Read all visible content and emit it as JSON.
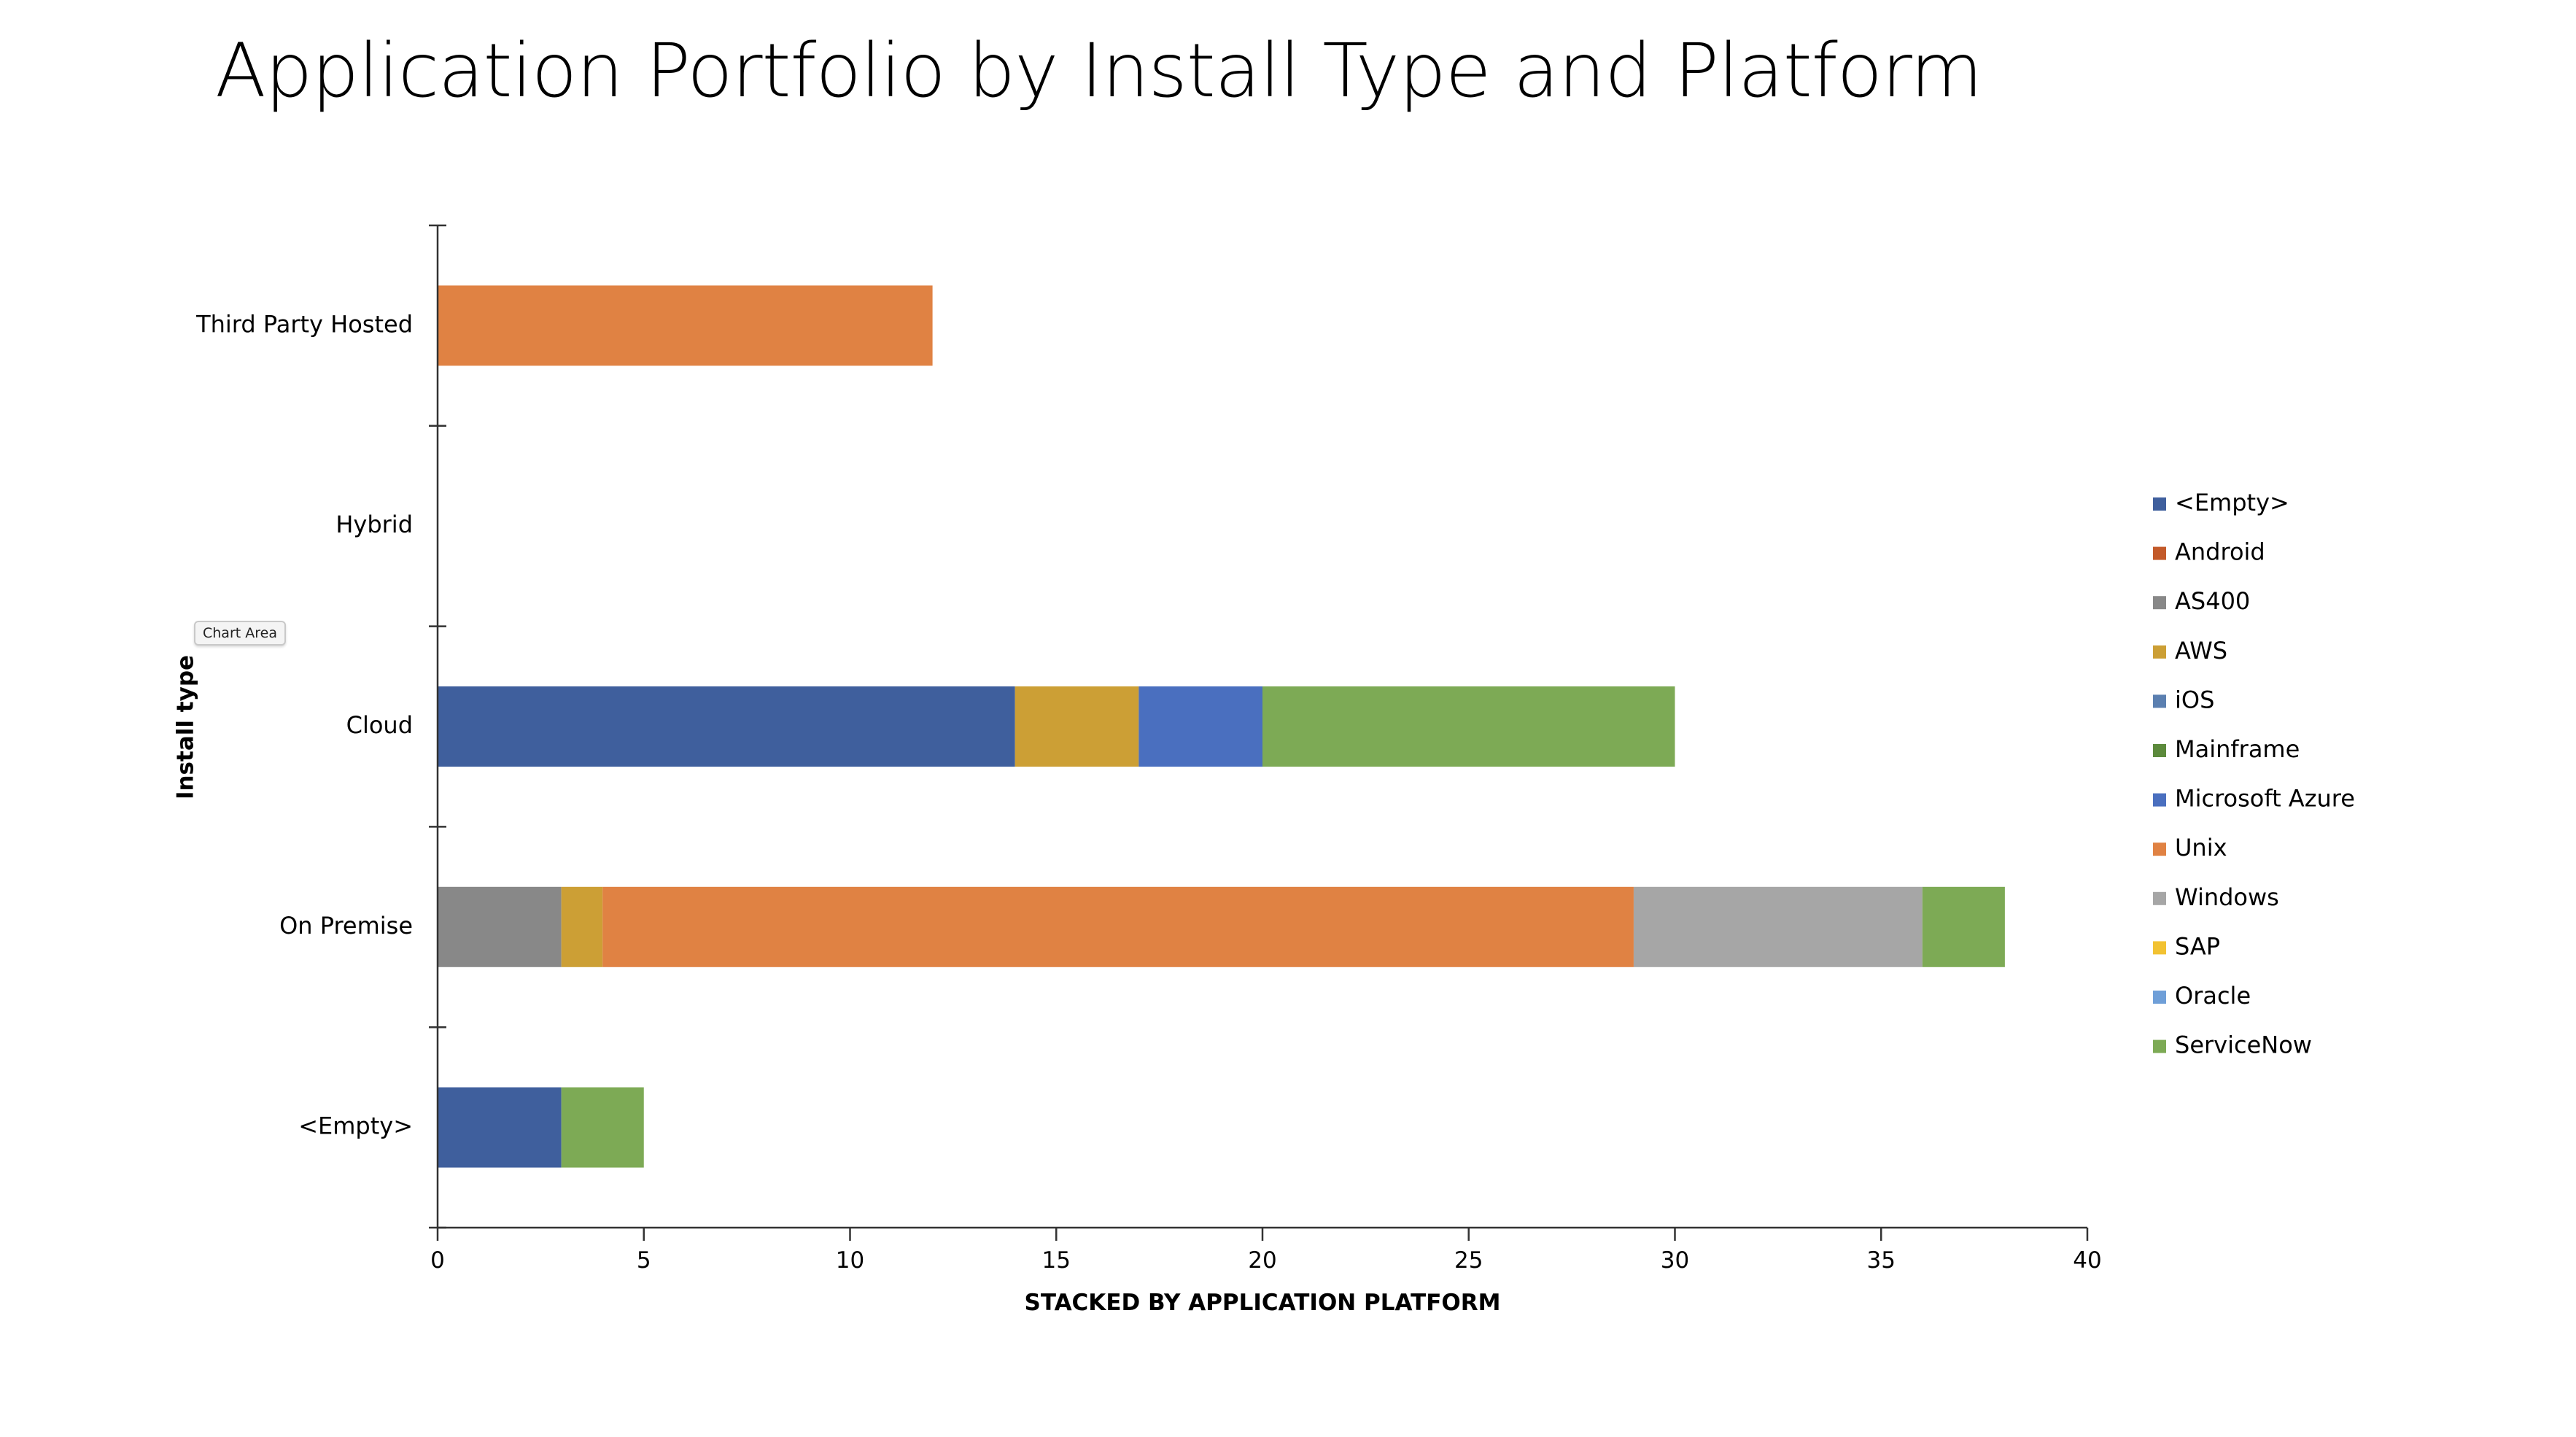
{
  "title": "Application Portfolio by Install Type and Platform",
  "tooltip": "Chart Area",
  "chart_data": {
    "type": "bar",
    "orientation": "horizontal",
    "stacked": true,
    "categories": [
      "Third Party Hosted",
      "Hybrid",
      "Cloud",
      "On Premise",
      "<Empty>"
    ],
    "series": [
      {
        "name": "<Empty>",
        "color": "#3f5f9d",
        "values": [
          0,
          0,
          14,
          0,
          3
        ]
      },
      {
        "name": "Android",
        "color": "#c35a2a",
        "values": [
          0,
          0,
          0,
          0,
          0
        ]
      },
      {
        "name": "AS400",
        "color": "#888888",
        "values": [
          0,
          0,
          0,
          3,
          0
        ]
      },
      {
        "name": "AWS",
        "color": "#cc9f35",
        "values": [
          0,
          0,
          3,
          1,
          0
        ]
      },
      {
        "name": "iOS",
        "color": "#5b7fb0",
        "values": [
          0,
          0,
          0,
          0,
          0
        ]
      },
      {
        "name": "Mainframe",
        "color": "#5c8a3c",
        "values": [
          0,
          0,
          0,
          0,
          0
        ]
      },
      {
        "name": "Microsoft Azure",
        "color": "#4a6fbf",
        "values": [
          0,
          0,
          3,
          0,
          0
        ]
      },
      {
        "name": "Unix",
        "color": "#e08243",
        "values": [
          12,
          0,
          0,
          25,
          0
        ]
      },
      {
        "name": "Windows",
        "color": "#a6a6a6",
        "values": [
          0,
          0,
          0,
          7,
          0
        ]
      },
      {
        "name": "SAP",
        "color": "#f2c232",
        "values": [
          0,
          0,
          0,
          0,
          0
        ]
      },
      {
        "name": "Oracle",
        "color": "#6f9fd8",
        "values": [
          0,
          0,
          0,
          0,
          0
        ]
      },
      {
        "name": "ServiceNow",
        "color": "#7daa55",
        "values": [
          0,
          0,
          10,
          2,
          2
        ]
      }
    ],
    "xlabel": "STACKED BY APPLICATION PLATFORM",
    "ylabel": "Install type",
    "xlim": [
      0,
      40
    ],
    "xticks": [
      0,
      5,
      10,
      15,
      20,
      25,
      30,
      35,
      40
    ],
    "grid": false,
    "legend_position": "right"
  }
}
